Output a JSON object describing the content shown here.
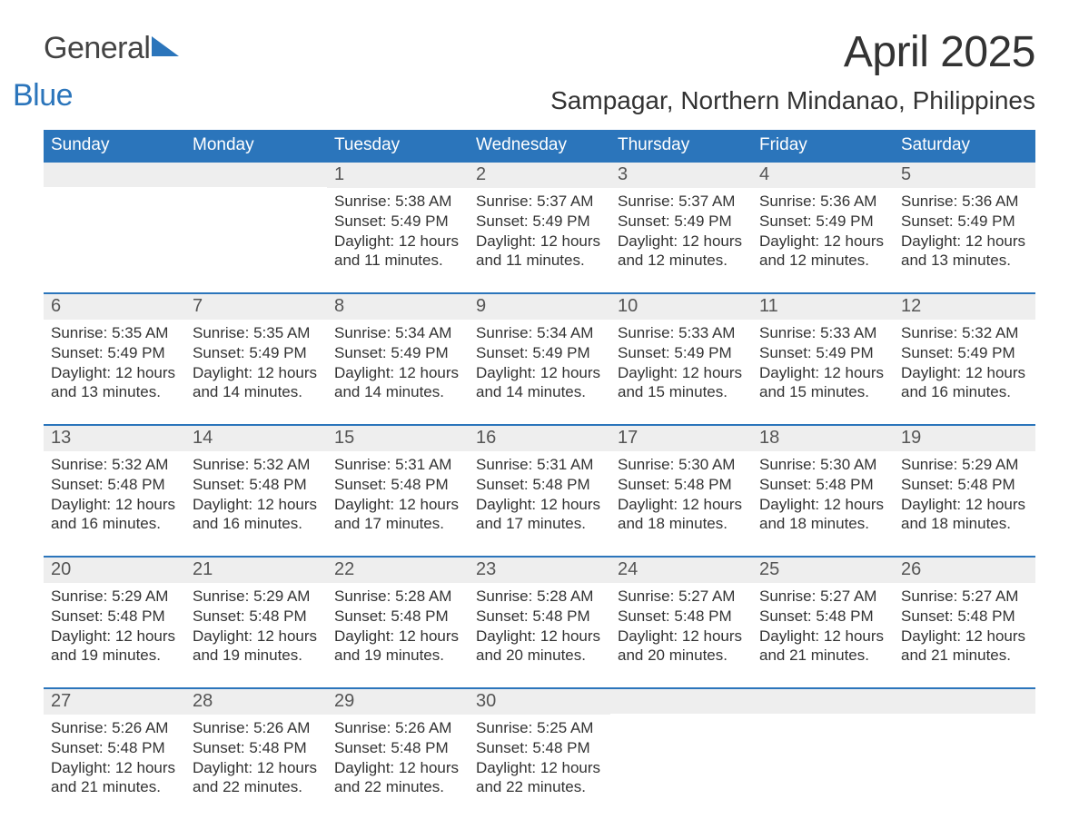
{
  "brand": {
    "word1": "General",
    "word2": "Blue",
    "accent_color": "#2b75bb"
  },
  "title": "April 2025",
  "location": "Sampagar, Northern Mindanao, Philippines",
  "colors": {
    "header_bg": "#2b75bb",
    "header_text": "#ffffff",
    "daynum_bg": "#eeeeee",
    "text": "#333333",
    "page_bg": "#ffffff"
  },
  "typography": {
    "title_fontsize": 48,
    "location_fontsize": 28,
    "weekday_fontsize": 19,
    "body_fontsize": 17
  },
  "layout": {
    "columns": 7,
    "week_top_border_color": "#2b75bb"
  },
  "weekdays": [
    "Sunday",
    "Monday",
    "Tuesday",
    "Wednesday",
    "Thursday",
    "Friday",
    "Saturday"
  ],
  "weeks": [
    [
      null,
      null,
      {
        "n": "1",
        "sunrise": "5:38 AM",
        "sunset": "5:49 PM",
        "daylight": "12 hours and 11 minutes."
      },
      {
        "n": "2",
        "sunrise": "5:37 AM",
        "sunset": "5:49 PM",
        "daylight": "12 hours and 11 minutes."
      },
      {
        "n": "3",
        "sunrise": "5:37 AM",
        "sunset": "5:49 PM",
        "daylight": "12 hours and 12 minutes."
      },
      {
        "n": "4",
        "sunrise": "5:36 AM",
        "sunset": "5:49 PM",
        "daylight": "12 hours and 12 minutes."
      },
      {
        "n": "5",
        "sunrise": "5:36 AM",
        "sunset": "5:49 PM",
        "daylight": "12 hours and 13 minutes."
      }
    ],
    [
      {
        "n": "6",
        "sunrise": "5:35 AM",
        "sunset": "5:49 PM",
        "daylight": "12 hours and 13 minutes."
      },
      {
        "n": "7",
        "sunrise": "5:35 AM",
        "sunset": "5:49 PM",
        "daylight": "12 hours and 14 minutes."
      },
      {
        "n": "8",
        "sunrise": "5:34 AM",
        "sunset": "5:49 PM",
        "daylight": "12 hours and 14 minutes."
      },
      {
        "n": "9",
        "sunrise": "5:34 AM",
        "sunset": "5:49 PM",
        "daylight": "12 hours and 14 minutes."
      },
      {
        "n": "10",
        "sunrise": "5:33 AM",
        "sunset": "5:49 PM",
        "daylight": "12 hours and 15 minutes."
      },
      {
        "n": "11",
        "sunrise": "5:33 AM",
        "sunset": "5:49 PM",
        "daylight": "12 hours and 15 minutes."
      },
      {
        "n": "12",
        "sunrise": "5:32 AM",
        "sunset": "5:49 PM",
        "daylight": "12 hours and 16 minutes."
      }
    ],
    [
      {
        "n": "13",
        "sunrise": "5:32 AM",
        "sunset": "5:48 PM",
        "daylight": "12 hours and 16 minutes."
      },
      {
        "n": "14",
        "sunrise": "5:32 AM",
        "sunset": "5:48 PM",
        "daylight": "12 hours and 16 minutes."
      },
      {
        "n": "15",
        "sunrise": "5:31 AM",
        "sunset": "5:48 PM",
        "daylight": "12 hours and 17 minutes."
      },
      {
        "n": "16",
        "sunrise": "5:31 AM",
        "sunset": "5:48 PM",
        "daylight": "12 hours and 17 minutes."
      },
      {
        "n": "17",
        "sunrise": "5:30 AM",
        "sunset": "5:48 PM",
        "daylight": "12 hours and 18 minutes."
      },
      {
        "n": "18",
        "sunrise": "5:30 AM",
        "sunset": "5:48 PM",
        "daylight": "12 hours and 18 minutes."
      },
      {
        "n": "19",
        "sunrise": "5:29 AM",
        "sunset": "5:48 PM",
        "daylight": "12 hours and 18 minutes."
      }
    ],
    [
      {
        "n": "20",
        "sunrise": "5:29 AM",
        "sunset": "5:48 PM",
        "daylight": "12 hours and 19 minutes."
      },
      {
        "n": "21",
        "sunrise": "5:29 AM",
        "sunset": "5:48 PM",
        "daylight": "12 hours and 19 minutes."
      },
      {
        "n": "22",
        "sunrise": "5:28 AM",
        "sunset": "5:48 PM",
        "daylight": "12 hours and 19 minutes."
      },
      {
        "n": "23",
        "sunrise": "5:28 AM",
        "sunset": "5:48 PM",
        "daylight": "12 hours and 20 minutes."
      },
      {
        "n": "24",
        "sunrise": "5:27 AM",
        "sunset": "5:48 PM",
        "daylight": "12 hours and 20 minutes."
      },
      {
        "n": "25",
        "sunrise": "5:27 AM",
        "sunset": "5:48 PM",
        "daylight": "12 hours and 21 minutes."
      },
      {
        "n": "26",
        "sunrise": "5:27 AM",
        "sunset": "5:48 PM",
        "daylight": "12 hours and 21 minutes."
      }
    ],
    [
      {
        "n": "27",
        "sunrise": "5:26 AM",
        "sunset": "5:48 PM",
        "daylight": "12 hours and 21 minutes."
      },
      {
        "n": "28",
        "sunrise": "5:26 AM",
        "sunset": "5:48 PM",
        "daylight": "12 hours and 22 minutes."
      },
      {
        "n": "29",
        "sunrise": "5:26 AM",
        "sunset": "5:48 PM",
        "daylight": "12 hours and 22 minutes."
      },
      {
        "n": "30",
        "sunrise": "5:25 AM",
        "sunset": "5:48 PM",
        "daylight": "12 hours and 22 minutes."
      },
      null,
      null,
      null
    ]
  ],
  "labels": {
    "sunrise": "Sunrise: ",
    "sunset": "Sunset: ",
    "daylight": "Daylight: "
  }
}
